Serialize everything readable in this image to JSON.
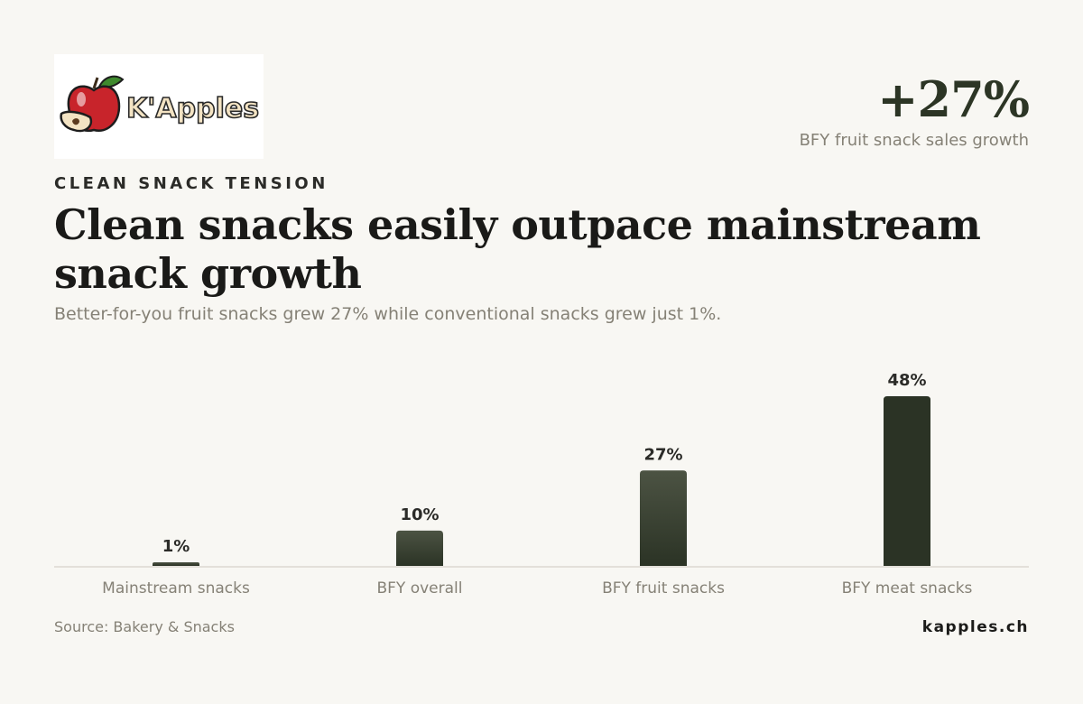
{
  "brand": {
    "logo_text": "K'Apples",
    "site": "kapples.ch"
  },
  "headline_stat": {
    "value": "+27%",
    "label": "BFY fruit snack sales growth"
  },
  "eyebrow": "CLEAN SNACK TENSION",
  "title": "Clean snacks easily outpace mainstream snack growth",
  "subtitle": "Better-for-you fruit snacks grew 27% while conventional snacks grew just 1%.",
  "source": "Source: Bakery & Snacks",
  "colors": {
    "background": "#f8f7f3",
    "bar_light": "#4c5343",
    "bar_dark": "#2b3325",
    "axis": "#d6d3cb",
    "muted_text": "#858176"
  },
  "chart_data": {
    "type": "bar",
    "categories": [
      "Mainstream snacks",
      "BFY overall",
      "BFY fruit snacks",
      "BFY meat snacks"
    ],
    "values": [
      1,
      10,
      27,
      48
    ],
    "value_labels": [
      "1%",
      "10%",
      "27%",
      "48%"
    ],
    "unit": "%",
    "ylim": [
      0,
      48
    ],
    "grid": false,
    "title": "",
    "xlabel": "",
    "ylabel": ""
  }
}
